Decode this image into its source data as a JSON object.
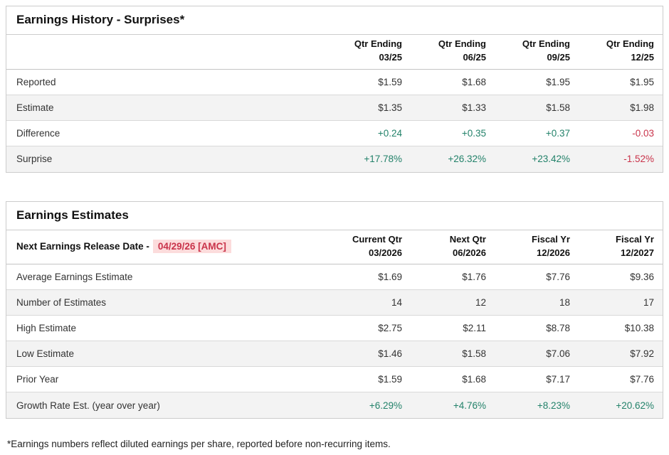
{
  "colors": {
    "green": "#23826a",
    "red": "#c9334a",
    "highlight_bg": "#fcdcdc"
  },
  "surprises_table": {
    "title": "Earnings History - Surprises*",
    "columns": [
      {
        "line1": "Qtr Ending",
        "line2": "03/25"
      },
      {
        "line1": "Qtr Ending",
        "line2": "06/25"
      },
      {
        "line1": "Qtr Ending",
        "line2": "09/25"
      },
      {
        "line1": "Qtr Ending",
        "line2": "12/25"
      }
    ],
    "rows": [
      {
        "label": "Reported",
        "values": [
          "$1.59",
          "$1.68",
          "$1.95",
          "$1.95"
        ]
      },
      {
        "label": "Estimate",
        "values": [
          "$1.35",
          "$1.33",
          "$1.58",
          "$1.98"
        ]
      },
      {
        "label": "Difference",
        "values": [
          "+0.24",
          "+0.35",
          "+0.37",
          "-0.03"
        ]
      },
      {
        "label": "Surprise",
        "values": [
          "+17.78%",
          "+26.32%",
          "+23.42%",
          "-1.52%"
        ]
      }
    ]
  },
  "estimates_table": {
    "title": "Earnings Estimates",
    "release_label": "Next Earnings Release Date -",
    "release_date": "04/29/26 [AMC]",
    "columns": [
      {
        "line1": "Current Qtr",
        "line2": "03/2026"
      },
      {
        "line1": "Next Qtr",
        "line2": "06/2026"
      },
      {
        "line1": "Fiscal Yr",
        "line2": "12/2026"
      },
      {
        "line1": "Fiscal Yr",
        "line2": "12/2027"
      }
    ],
    "rows": [
      {
        "label": "Average Earnings Estimate",
        "values": [
          "$1.69",
          "$1.76",
          "$7.76",
          "$9.36"
        ]
      },
      {
        "label": "Number of Estimates",
        "values": [
          "14",
          "12",
          "18",
          "17"
        ]
      },
      {
        "label": "High Estimate",
        "values": [
          "$2.75",
          "$2.11",
          "$8.78",
          "$10.38"
        ]
      },
      {
        "label": "Low Estimate",
        "values": [
          "$1.46",
          "$1.58",
          "$7.06",
          "$7.92"
        ]
      },
      {
        "label": "Prior Year",
        "values": [
          "$1.59",
          "$1.68",
          "$7.17",
          "$7.76"
        ]
      },
      {
        "label": "Growth Rate Est. (year over year)",
        "values": [
          "+6.29%",
          "+4.76%",
          "+8.23%",
          "+20.62%"
        ]
      }
    ]
  },
  "footnote": "*Earnings numbers reflect diluted earnings per share, reported before non-recurring items."
}
